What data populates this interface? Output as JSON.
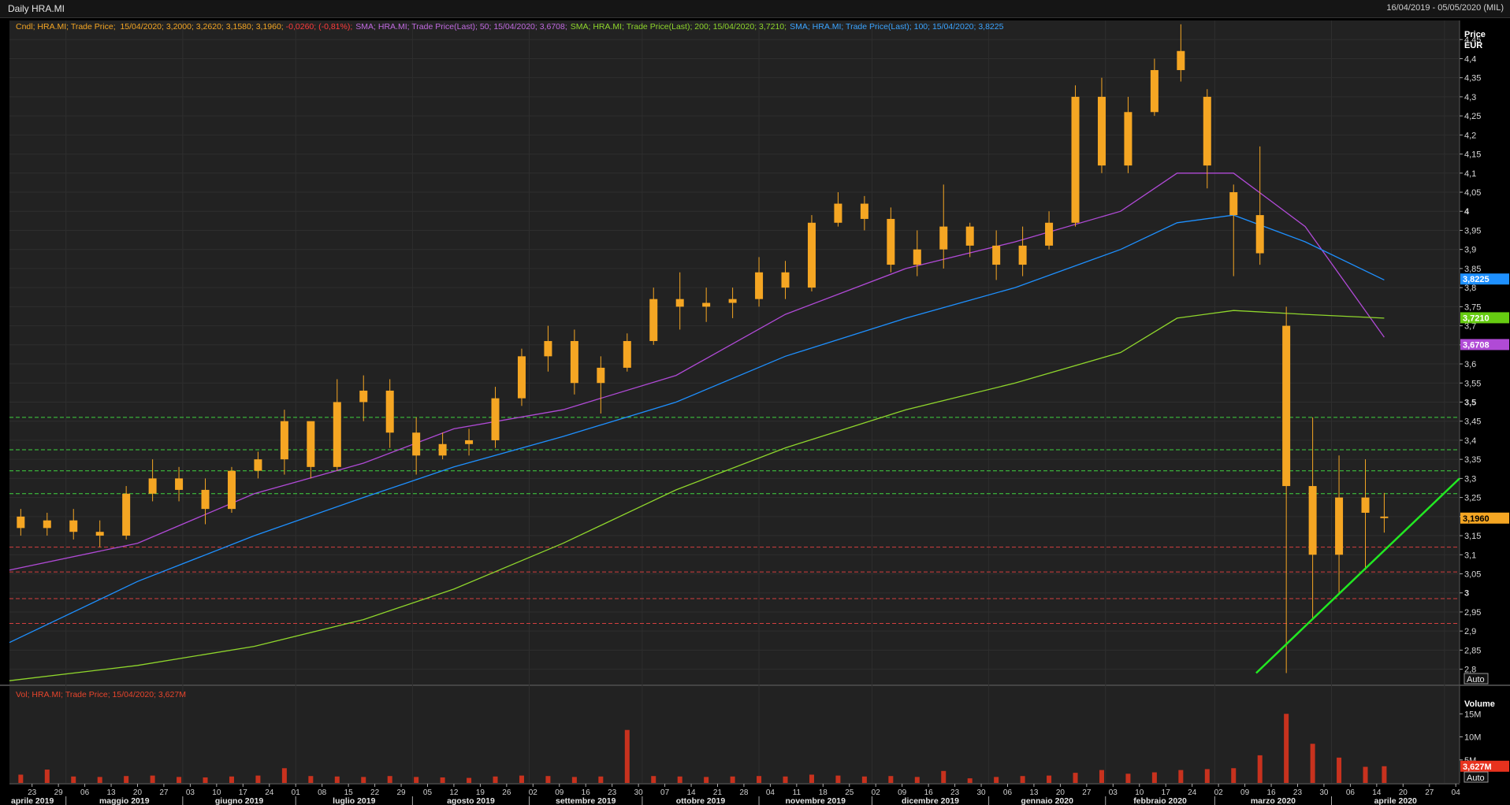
{
  "window": {
    "title": "Daily HRA.MI",
    "date_range": "16/04/2019 - 05/05/2020 (MIL)"
  },
  "legend": {
    "candle": {
      "prefix": "Cndl; HRA.MI; Trade Price;  15/04/2020; 3,2000; 3,2620; 3,1580; 3,1960; ",
      "change": "-0,0260; (-0,81%);"
    },
    "sma50": "SMA; HRA.MI; Trade Price(Last);  50;  15/04/2020; 3,6708;",
    "sma200": "SMA; HRA.MI; Trade Price(Last);  200;  15/04/2020; 3,7210;",
    "sma100": "SMA; HRA.MI; Trade Price(Last);  100;  15/04/2020; 3,8225",
    "volume": "Vol; HRA.MI; Trade Price;  15/04/2020; 3,627M"
  },
  "price_axis": {
    "title1": "Price",
    "title2": "EUR",
    "ticks": [
      "4,45",
      "4,4",
      "4,35",
      "4,3",
      "4,25",
      "4,2",
      "4,15",
      "4,1",
      "4,05",
      "4",
      "3,95",
      "3,9",
      "3,85",
      "3,8",
      "3,75",
      "3,7",
      "3,65",
      "3,6",
      "3,55",
      "3,5",
      "3,45",
      "3,4",
      "3,35",
      "3,3",
      "3,25",
      "3,2",
      "3,15",
      "3,1",
      "3,05",
      "3",
      "2,95",
      "2,9",
      "2,85",
      "2,8"
    ],
    "auto_label": "Auto"
  },
  "volume_axis": {
    "title": "Volume",
    "ticks": [
      "15M",
      "10M",
      "5M"
    ],
    "auto_label": "Auto"
  },
  "badges": {
    "sma100": "3,8225",
    "sma200": "3,7210",
    "sma50": "3,6708",
    "price": "3,1960",
    "volume": "3,627M"
  },
  "colors": {
    "background": "#222222",
    "candle": "#f5a623",
    "sma50": "#b04ad6",
    "sma100": "#1e90ff",
    "sma200": "#8fd62c",
    "resistance_lines": "#3fd43f",
    "support_lines": "#d43f3f",
    "trendline": "#22e822",
    "volume_bars": "#c8321e"
  },
  "x_axis": {
    "day_ticks": [
      "23",
      "29",
      "06",
      "13",
      "20",
      "27",
      "03",
      "10",
      "17",
      "24",
      "01",
      "08",
      "15",
      "22",
      "29",
      "05",
      "12",
      "19",
      "26",
      "02",
      "09",
      "16",
      "23",
      "30",
      "07",
      "14",
      "21",
      "28",
      "04",
      "11",
      "18",
      "25",
      "02",
      "09",
      "16",
      "23",
      "30",
      "06",
      "13",
      "20",
      "27",
      "03",
      "10",
      "17",
      "24",
      "02",
      "09",
      "16",
      "23",
      "30",
      "06",
      "14",
      "20",
      "27",
      "04"
    ],
    "months": [
      "aprile 2019",
      "maggio 2019",
      "giugno 2019",
      "luglio 2019",
      "agosto 2019",
      "settembre 2019",
      "ottobre 2019",
      "novembre 2019",
      "dicembre 2019",
      "gennaio 2020",
      "febbraio 2020",
      "marzo 2020",
      "aprile 2020"
    ]
  },
  "chart_data": {
    "type": "candlestick",
    "title": "Daily HRA.MI",
    "period": "16/04/2019 - 05/05/2020",
    "ylabel": "Price EUR",
    "ylim": [
      2.76,
      4.5
    ],
    "volume_ylim": [
      0,
      20
    ],
    "grid": true,
    "candles_weekly": [
      {
        "date": "2019-04-19",
        "o": 3.2,
        "h": 3.22,
        "l": 3.15,
        "c": 3.17
      },
      {
        "date": "2019-04-26",
        "o": 3.17,
        "h": 3.21,
        "l": 3.15,
        "c": 3.19
      },
      {
        "date": "2019-05-03",
        "o": 3.19,
        "h": 3.22,
        "l": 3.14,
        "c": 3.16
      },
      {
        "date": "2019-05-10",
        "o": 3.16,
        "h": 3.19,
        "l": 3.12,
        "c": 3.15
      },
      {
        "date": "2019-05-17",
        "o": 3.15,
        "h": 3.28,
        "l": 3.14,
        "c": 3.26
      },
      {
        "date": "2019-05-24",
        "o": 3.26,
        "h": 3.35,
        "l": 3.24,
        "c": 3.3
      },
      {
        "date": "2019-05-31",
        "o": 3.3,
        "h": 3.33,
        "l": 3.24,
        "c": 3.27
      },
      {
        "date": "2019-06-07",
        "o": 3.27,
        "h": 3.3,
        "l": 3.18,
        "c": 3.22
      },
      {
        "date": "2019-06-14",
        "o": 3.22,
        "h": 3.33,
        "l": 3.21,
        "c": 3.32
      },
      {
        "date": "2019-06-21",
        "o": 3.32,
        "h": 3.37,
        "l": 3.3,
        "c": 3.35
      },
      {
        "date": "2019-06-28",
        "o": 3.35,
        "h": 3.48,
        "l": 3.31,
        "c": 3.45
      },
      {
        "date": "2019-07-05",
        "o": 3.45,
        "h": 3.4,
        "l": 3.3,
        "c": 3.33
      },
      {
        "date": "2019-07-12",
        "o": 3.33,
        "h": 3.56,
        "l": 3.32,
        "c": 3.5
      },
      {
        "date": "2019-07-19",
        "o": 3.5,
        "h": 3.57,
        "l": 3.45,
        "c": 3.53
      },
      {
        "date": "2019-07-26",
        "o": 3.53,
        "h": 3.56,
        "l": 3.38,
        "c": 3.42
      },
      {
        "date": "2019-08-02",
        "o": 3.42,
        "h": 3.46,
        "l": 3.31,
        "c": 3.36
      },
      {
        "date": "2019-08-09",
        "o": 3.36,
        "h": 3.42,
        "l": 3.35,
        "c": 3.39
      },
      {
        "date": "2019-08-16",
        "o": 3.39,
        "h": 3.43,
        "l": 3.36,
        "c": 3.4
      },
      {
        "date": "2019-08-23",
        "o": 3.4,
        "h": 3.54,
        "l": 3.38,
        "c": 3.51
      },
      {
        "date": "2019-08-30",
        "o": 3.51,
        "h": 3.64,
        "l": 3.49,
        "c": 3.62
      },
      {
        "date": "2019-09-06",
        "o": 3.62,
        "h": 3.7,
        "l": 3.58,
        "c": 3.66
      },
      {
        "date": "2019-09-13",
        "o": 3.66,
        "h": 3.69,
        "l": 3.52,
        "c": 3.55
      },
      {
        "date": "2019-09-20",
        "o": 3.55,
        "h": 3.62,
        "l": 3.47,
        "c": 3.59
      },
      {
        "date": "2019-09-27",
        "o": 3.59,
        "h": 3.68,
        "l": 3.58,
        "c": 3.66
      },
      {
        "date": "2019-10-04",
        "o": 3.66,
        "h": 3.8,
        "l": 3.65,
        "c": 3.77
      },
      {
        "date": "2019-10-11",
        "o": 3.77,
        "h": 3.84,
        "l": 3.69,
        "c": 3.75
      },
      {
        "date": "2019-10-18",
        "o": 3.75,
        "h": 3.8,
        "l": 3.71,
        "c": 3.76
      },
      {
        "date": "2019-10-25",
        "o": 3.76,
        "h": 3.8,
        "l": 3.72,
        "c": 3.77
      },
      {
        "date": "2019-11-01",
        "o": 3.77,
        "h": 3.88,
        "l": 3.75,
        "c": 3.84
      },
      {
        "date": "2019-11-08",
        "o": 3.84,
        "h": 3.87,
        "l": 3.77,
        "c": 3.8
      },
      {
        "date": "2019-11-15",
        "o": 3.8,
        "h": 3.99,
        "l": 3.79,
        "c": 3.97
      },
      {
        "date": "2019-11-22",
        "o": 3.97,
        "h": 4.05,
        "l": 3.96,
        "c": 4.02
      },
      {
        "date": "2019-11-29",
        "o": 4.02,
        "h": 4.04,
        "l": 3.95,
        "c": 3.98
      },
      {
        "date": "2019-12-06",
        "o": 3.98,
        "h": 4.01,
        "l": 3.84,
        "c": 3.86
      },
      {
        "date": "2019-12-13",
        "o": 3.86,
        "h": 3.95,
        "l": 3.83,
        "c": 3.9
      },
      {
        "date": "2019-12-20",
        "o": 3.9,
        "h": 4.07,
        "l": 3.85,
        "c": 3.96
      },
      {
        "date": "2019-12-27",
        "o": 3.96,
        "h": 3.97,
        "l": 3.88,
        "c": 3.91
      },
      {
        "date": "2020-01-03",
        "o": 3.91,
        "h": 3.95,
        "l": 3.82,
        "c": 3.86
      },
      {
        "date": "2020-01-10",
        "o": 3.86,
        "h": 3.96,
        "l": 3.83,
        "c": 3.91
      },
      {
        "date": "2020-01-17",
        "o": 3.91,
        "h": 4.0,
        "l": 3.9,
        "c": 3.97
      },
      {
        "date": "2020-01-24",
        "o": 3.97,
        "h": 4.33,
        "l": 3.96,
        "c": 4.3
      },
      {
        "date": "2020-01-31",
        "o": 4.3,
        "h": 4.35,
        "l": 4.1,
        "c": 4.12
      },
      {
        "date": "2020-02-07",
        "o": 4.12,
        "h": 4.3,
        "l": 4.1,
        "c": 4.26
      },
      {
        "date": "2020-02-14",
        "o": 4.26,
        "h": 4.4,
        "l": 4.25,
        "c": 4.37
      },
      {
        "date": "2020-02-21",
        "o": 4.37,
        "h": 4.49,
        "l": 4.34,
        "c": 4.42
      },
      {
        "date": "2020-02-28",
        "o": 4.3,
        "h": 4.32,
        "l": 4.06,
        "c": 4.12
      },
      {
        "date": "2020-03-06",
        "o": 4.05,
        "h": 4.07,
        "l": 3.83,
        "c": 3.99
      },
      {
        "date": "2020-03-13",
        "o": 3.99,
        "h": 4.17,
        "l": 3.86,
        "c": 3.89
      },
      {
        "date": "2020-03-20",
        "o": 3.7,
        "h": 3.75,
        "l": 2.79,
        "c": 3.28
      },
      {
        "date": "2020-03-27",
        "o": 3.28,
        "h": 3.46,
        "l": 2.93,
        "c": 3.1
      },
      {
        "date": "2020-04-03",
        "o": 3.1,
        "h": 3.36,
        "l": 3.0,
        "c": 3.25
      },
      {
        "date": "2020-04-10",
        "o": 3.25,
        "h": 3.35,
        "l": 3.06,
        "c": 3.21
      },
      {
        "date": "2020-04-15",
        "o": 3.2,
        "h": 3.262,
        "l": 3.158,
        "c": 3.196
      }
    ],
    "last_candle": {
      "date": "15/04/2020",
      "open": 3.2,
      "high": 3.262,
      "low": 3.158,
      "close": 3.196,
      "change": -0.026,
      "change_pct": -0.81
    },
    "series": [
      {
        "name": "SMA 50",
        "last": 3.6708,
        "points": [
          [
            "2019-04-16",
            3.06
          ],
          [
            "2019-05-20",
            3.13
          ],
          [
            "2019-06-20",
            3.26
          ],
          [
            "2019-07-19",
            3.34
          ],
          [
            "2019-08-12",
            3.43
          ],
          [
            "2019-09-10",
            3.48
          ],
          [
            "2019-10-10",
            3.57
          ],
          [
            "2019-11-08",
            3.73
          ],
          [
            "2019-12-10",
            3.85
          ],
          [
            "2020-01-08",
            3.92
          ],
          [
            "2020-02-05",
            4.0
          ],
          [
            "2020-02-20",
            4.1
          ],
          [
            "2020-03-06",
            4.1
          ],
          [
            "2020-03-25",
            3.96
          ],
          [
            "2020-04-15",
            3.67
          ]
        ]
      },
      {
        "name": "SMA 100",
        "last": 3.8225,
        "points": [
          [
            "2019-04-16",
            2.87
          ],
          [
            "2019-05-20",
            3.03
          ],
          [
            "2019-06-20",
            3.15
          ],
          [
            "2019-07-19",
            3.25
          ],
          [
            "2019-08-12",
            3.33
          ],
          [
            "2019-09-10",
            3.41
          ],
          [
            "2019-10-10",
            3.5
          ],
          [
            "2019-11-08",
            3.62
          ],
          [
            "2019-12-10",
            3.72
          ],
          [
            "2020-01-08",
            3.8
          ],
          [
            "2020-02-05",
            3.9
          ],
          [
            "2020-02-20",
            3.97
          ],
          [
            "2020-03-06",
            3.99
          ],
          [
            "2020-03-25",
            3.92
          ],
          [
            "2020-04-15",
            3.82
          ]
        ]
      },
      {
        "name": "SMA 200",
        "last": 3.721,
        "points": [
          [
            "2019-04-16",
            2.77
          ],
          [
            "2019-05-20",
            2.81
          ],
          [
            "2019-06-20",
            2.86
          ],
          [
            "2019-07-19",
            2.93
          ],
          [
            "2019-08-12",
            3.01
          ],
          [
            "2019-09-10",
            3.13
          ],
          [
            "2019-10-10",
            3.27
          ],
          [
            "2019-11-08",
            3.38
          ],
          [
            "2019-12-10",
            3.48
          ],
          [
            "2020-01-08",
            3.55
          ],
          [
            "2020-02-05",
            3.63
          ],
          [
            "2020-02-20",
            3.72
          ],
          [
            "2020-03-06",
            3.74
          ],
          [
            "2020-03-25",
            3.73
          ],
          [
            "2020-04-15",
            3.72
          ]
        ]
      }
    ],
    "resistance_lines": [
      3.46,
      3.375,
      3.32,
      3.26
    ],
    "support_lines": [
      3.12,
      3.055,
      2.985,
      2.92
    ],
    "trendline": {
      "from": [
        "2020-03-12",
        2.79
      ],
      "to": [
        "2020-05-05",
        3.3
      ]
    },
    "volume_weekly": [
      {
        "date": "2019-04-19",
        "v": 1.8
      },
      {
        "date": "2019-04-26",
        "v": 2.9
      },
      {
        "date": "2019-05-03",
        "v": 1.4
      },
      {
        "date": "2019-05-10",
        "v": 1.3
      },
      {
        "date": "2019-05-17",
        "v": 1.5
      },
      {
        "date": "2019-05-24",
        "v": 1.6
      },
      {
        "date": "2019-05-31",
        "v": 1.3
      },
      {
        "date": "2019-06-07",
        "v": 1.2
      },
      {
        "date": "2019-06-14",
        "v": 1.4
      },
      {
        "date": "2019-06-21",
        "v": 1.6
      },
      {
        "date": "2019-06-28",
        "v": 3.2
      },
      {
        "date": "2019-07-05",
        "v": 1.5
      },
      {
        "date": "2019-07-12",
        "v": 1.4
      },
      {
        "date": "2019-07-19",
        "v": 1.3
      },
      {
        "date": "2019-07-26",
        "v": 1.5
      },
      {
        "date": "2019-08-02",
        "v": 1.3
      },
      {
        "date": "2019-08-09",
        "v": 1.2
      },
      {
        "date": "2019-08-16",
        "v": 1.1
      },
      {
        "date": "2019-08-23",
        "v": 1.4
      },
      {
        "date": "2019-08-30",
        "v": 1.6
      },
      {
        "date": "2019-09-06",
        "v": 1.5
      },
      {
        "date": "2019-09-13",
        "v": 1.3
      },
      {
        "date": "2019-09-20",
        "v": 1.4
      },
      {
        "date": "2019-09-27",
        "v": 11.5
      },
      {
        "date": "2019-10-04",
        "v": 1.5
      },
      {
        "date": "2019-10-11",
        "v": 1.4
      },
      {
        "date": "2019-10-18",
        "v": 1.3
      },
      {
        "date": "2019-10-25",
        "v": 1.4
      },
      {
        "date": "2019-11-01",
        "v": 1.5
      },
      {
        "date": "2019-11-08",
        "v": 1.4
      },
      {
        "date": "2019-11-15",
        "v": 1.8
      },
      {
        "date": "2019-11-22",
        "v": 1.6
      },
      {
        "date": "2019-11-29",
        "v": 1.4
      },
      {
        "date": "2019-12-06",
        "v": 1.5
      },
      {
        "date": "2019-12-13",
        "v": 1.3
      },
      {
        "date": "2019-12-20",
        "v": 2.6
      },
      {
        "date": "2019-12-27",
        "v": 1.0
      },
      {
        "date": "2020-01-03",
        "v": 1.3
      },
      {
        "date": "2020-01-10",
        "v": 1.5
      },
      {
        "date": "2020-01-17",
        "v": 1.6
      },
      {
        "date": "2020-01-24",
        "v": 2.2
      },
      {
        "date": "2020-01-31",
        "v": 2.8
      },
      {
        "date": "2020-02-07",
        "v": 2.0
      },
      {
        "date": "2020-02-14",
        "v": 2.3
      },
      {
        "date": "2020-02-21",
        "v": 2.8
      },
      {
        "date": "2020-02-28",
        "v": 3.0
      },
      {
        "date": "2020-03-06",
        "v": 3.2
      },
      {
        "date": "2020-03-13",
        "v": 6.0
      },
      {
        "date": "2020-03-20",
        "v": 15.0
      },
      {
        "date": "2020-03-27",
        "v": 8.5
      },
      {
        "date": "2020-04-03",
        "v": 5.5
      },
      {
        "date": "2020-04-10",
        "v": 3.5
      },
      {
        "date": "2020-04-15",
        "v": 3.627
      }
    ]
  }
}
